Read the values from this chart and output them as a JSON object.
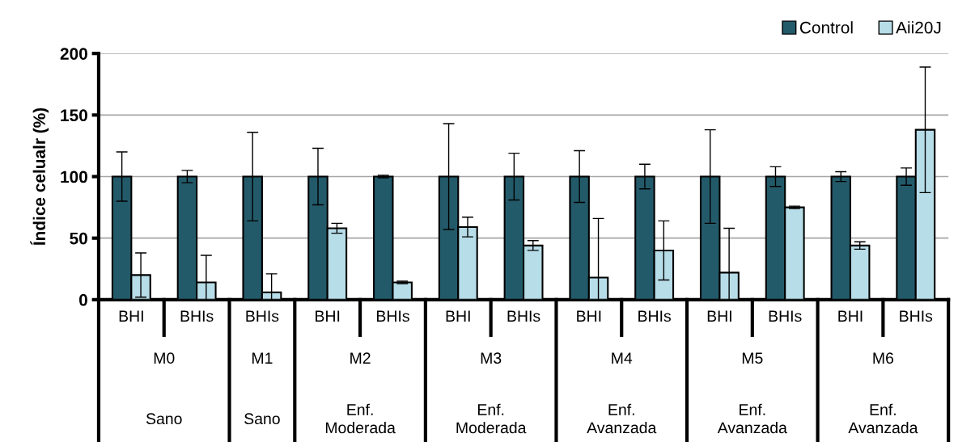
{
  "chart_data": {
    "type": "bar",
    "ylabel": "Índice celualr (%)",
    "categories": [
      "BHI",
      "BHIs",
      "BHIs",
      "BHI",
      "BHIs",
      "BHI",
      "BHIs",
      "BHI",
      "BHIs",
      "BHI",
      "BHIs",
      "BHI",
      "BHIs"
    ],
    "series": [
      {
        "name": "Control",
        "color": "#235a6a",
        "values": [
          100,
          100,
          100,
          100,
          100,
          100,
          100,
          100,
          100,
          100,
          100,
          100,
          100
        ],
        "errors": [
          20,
          5,
          36,
          23,
          1,
          43,
          19,
          21,
          10,
          38,
          8,
          4,
          7
        ]
      },
      {
        "name": "Aii20J",
        "color": "#b7dde8",
        "values": [
          20,
          14,
          6,
          58,
          14,
          59,
          44,
          18,
          40,
          22,
          75,
          44,
          138
        ],
        "errors": [
          18,
          22,
          15,
          4,
          1,
          8,
          4,
          48,
          24,
          36,
          1,
          3,
          51
        ]
      }
    ],
    "annotations": [
      "M0",
      "M1",
      "M2",
      "M3",
      "M4",
      "M5",
      "M6",
      "Sano",
      "Sano",
      "Enf.\nModerada",
      "Enf.\nModerada",
      "Enf.\nAvanzada",
      "Enf.\nAvanzada",
      "Enf.\nAvanzada"
    ],
    "ylim": [
      0,
      200
    ],
    "yticks": [
      0,
      50,
      100,
      150,
      200
    ],
    "grid": "y",
    "legend": "top right"
  }
}
